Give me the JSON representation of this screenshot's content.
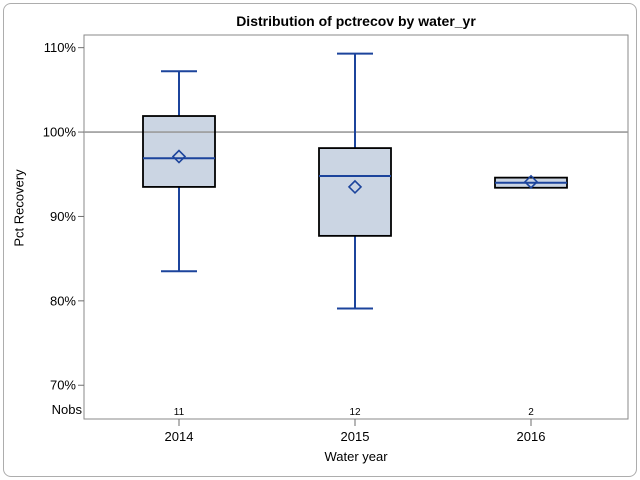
{
  "chart": {
    "title": "Distribution of pctrecov by water_yr",
    "y_axis_title": "Pct Recovery",
    "x_axis_title": "Water year",
    "nobs_row_label": "Nobs"
  },
  "chart_data": {
    "type": "boxplot",
    "title": "Distribution of pctrecov by water_yr",
    "xlabel": "Water year",
    "ylabel": "Pct Recovery",
    "categories": [
      "2014",
      "2015",
      "2016"
    ],
    "nobs": [
      "11",
      "12",
      "2"
    ],
    "series": [
      {
        "category": "2014",
        "n": 11,
        "whisker_low": 83.5,
        "q1": 93.5,
        "median": 96.9,
        "mean": 97.1,
        "q3": 101.9,
        "whisker_high": 107.2
      },
      {
        "category": "2015",
        "n": 12,
        "whisker_low": 79.1,
        "q1": 87.7,
        "median": 94.8,
        "mean": 93.5,
        "q3": 98.1,
        "whisker_high": 109.3
      },
      {
        "category": "2016",
        "n": 2,
        "whisker_low": 93.4,
        "q1": 93.4,
        "median": 94.0,
        "mean": 94.1,
        "q3": 94.6,
        "whisker_high": 94.6
      }
    ],
    "ytick_values": [
      110,
      100,
      90,
      80,
      70
    ],
    "ytick_labels": [
      "110%",
      "100%",
      "90%",
      "80%",
      "70%"
    ],
    "ylim": [
      66,
      111.5
    ],
    "refline": 100,
    "grid": false,
    "legend": "none"
  },
  "colors": {
    "box_fill": "#cbd5e3",
    "box_border": "#000000",
    "whisker": "#1c449c",
    "median": "#1c449c",
    "mean_marker": "#1c449c",
    "refline": "#9b9b9b",
    "frame": "#8a8a8a",
    "tick": "#6e6e6e",
    "text": "#000000",
    "outer_border": "#adadad"
  }
}
